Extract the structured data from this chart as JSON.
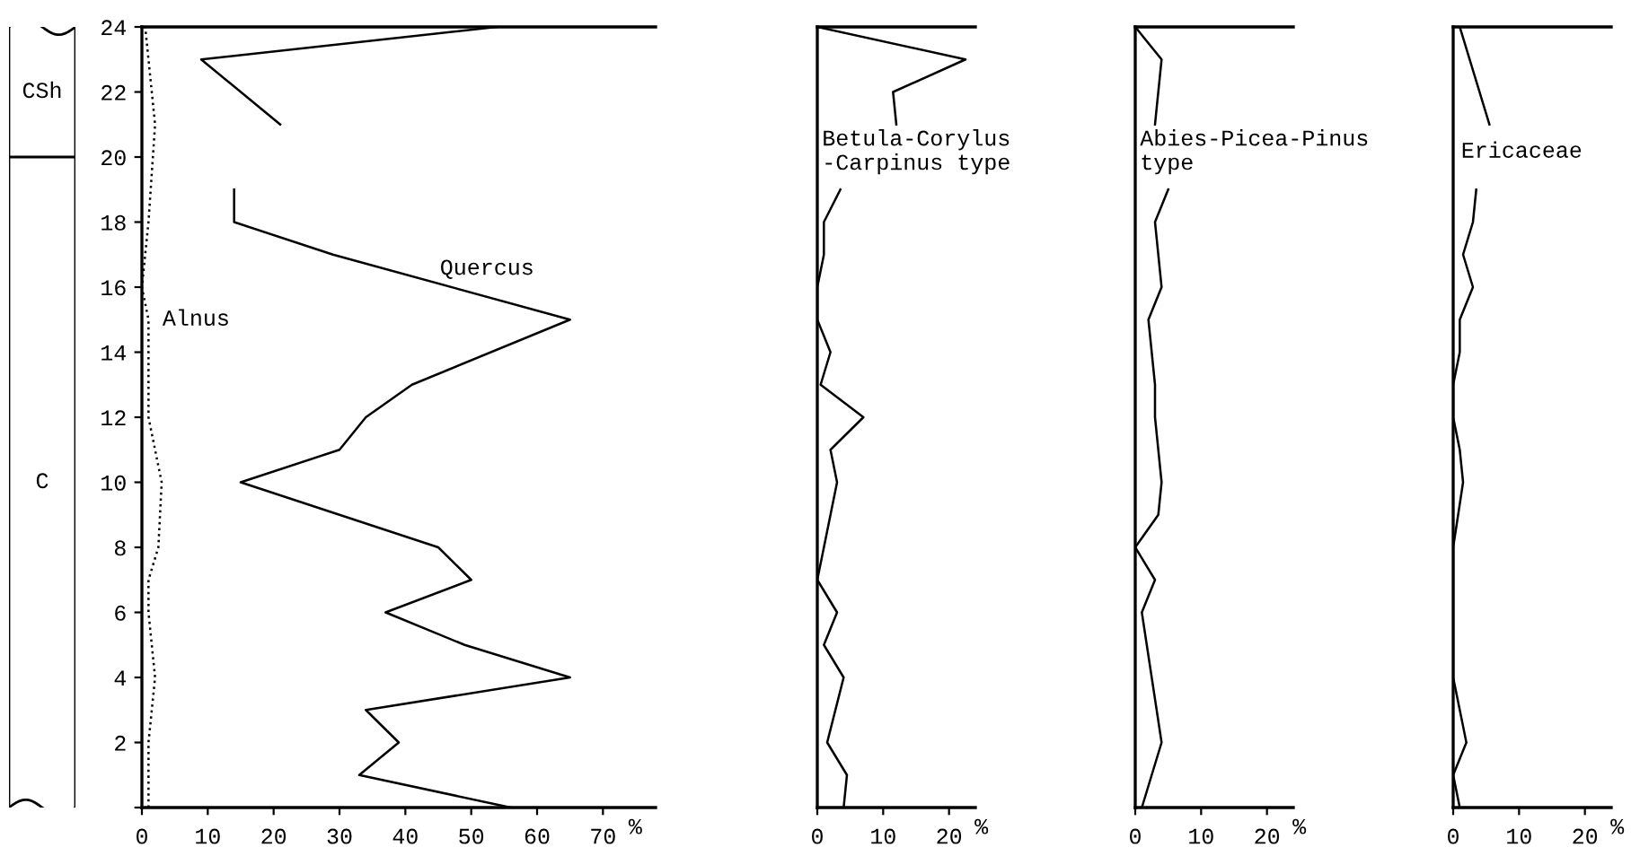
{
  "chart_data": [
    {
      "type": "other",
      "annotations": [
        "CSh",
        "C"
      ]
    },
    {
      "type": "line",
      "xlim": [
        0,
        78
      ],
      "ylim": [
        0,
        24
      ],
      "grid": false,
      "marker": "none",
      "xticks": [
        0,
        10,
        20,
        30,
        40,
        50,
        60,
        70
      ],
      "xlabel": "%",
      "yticks": [
        {
          "value": 0,
          "label": null
        },
        2,
        4,
        6,
        8,
        10,
        12,
        14,
        16,
        18,
        20,
        22,
        24
      ],
      "series": [
        {
          "color": "#000000",
          "line_style": "solid",
          "x": [
            56,
            33,
            39,
            34,
            65,
            49,
            37,
            50,
            45,
            15,
            30,
            34,
            41,
            65,
            29,
            14,
            14,
            null,
            21,
            9,
            54
          ],
          "values": [
            0,
            1,
            2,
            3,
            4,
            5,
            6,
            7,
            8,
            10,
            11,
            12,
            13,
            15,
            17,
            18,
            19,
            null,
            21,
            23,
            24
          ]
        },
        {
          "color": "#000000",
          "line_style": "dotted",
          "x": [
            1,
            1,
            2,
            1,
            1,
            2.5,
            3,
            1,
            1,
            0,
            1,
            2,
            1.5,
            0.5
          ],
          "values": [
            0,
            2,
            4,
            6,
            7,
            8,
            10,
            12,
            15,
            16,
            18,
            21,
            22,
            24
          ]
        }
      ],
      "annotations": [
        "Quercus",
        "Alnus"
      ]
    },
    {
      "type": "line",
      "xlim": [
        0,
        24
      ],
      "ylim": [
        0,
        24
      ],
      "grid": false,
      "marker": "none",
      "tick_labels": "x",
      "xticks": [
        0,
        10,
        20
      ],
      "xlabel": "%",
      "series": [
        {
          "color": "#000000",
          "line_style": "solid",
          "x": [
            4,
            4.5,
            1.5,
            4,
            1,
            3,
            0,
            3,
            2,
            7,
            0.5,
            2,
            0,
            0,
            1,
            1,
            3.5,
            null,
            12,
            11.5,
            22.5,
            0
          ],
          "values": [
            0,
            1,
            2,
            4,
            5,
            6,
            7,
            10,
            11,
            12,
            13,
            14,
            15,
            16,
            17,
            18,
            19,
            null,
            21,
            22,
            23,
            24
          ]
        }
      ],
      "annotations": [
        "Betula-Corylus\n-Carpinus type"
      ]
    },
    {
      "type": "line",
      "xlim": [
        0,
        24
      ],
      "ylim": [
        0,
        24
      ],
      "grid": false,
      "marker": "none",
      "tick_labels": "x",
      "xticks": [
        0,
        10,
        20
      ],
      "xlabel": "%",
      "series": [
        {
          "color": "#000000",
          "line_style": "solid",
          "x": [
            1,
            4,
            1,
            3,
            0,
            3.5,
            4,
            3,
            3,
            2,
            4,
            3,
            5,
            null,
            3,
            4,
            0
          ],
          "values": [
            0,
            2,
            6,
            7,
            8,
            9,
            10,
            12,
            13,
            15,
            16,
            18,
            19,
            null,
            21,
            23,
            24
          ]
        }
      ],
      "annotations": [
        "Abies-Picea-Pinus\ntype"
      ]
    },
    {
      "type": "line",
      "xlim": [
        0,
        24
      ],
      "ylim": [
        0,
        24
      ],
      "grid": false,
      "marker": "none",
      "tick_labels": "x",
      "xticks": [
        0,
        10,
        20
      ],
      "xlabel": "%",
      "series": [
        {
          "color": "#000000",
          "line_style": "solid",
          "x": [
            1,
            0,
            2,
            1,
            0,
            0,
            0,
            1.5,
            1,
            0,
            0,
            1,
            1,
            3,
            1.5,
            3,
            3.5,
            null,
            5.5,
            1
          ],
          "values": [
            0,
            1,
            2,
            3,
            4,
            5,
            8,
            10,
            11,
            12,
            13,
            14,
            15,
            16,
            17,
            18,
            19,
            null,
            21,
            24
          ]
        }
      ],
      "annotations": [
        "Ericaceae"
      ]
    }
  ]
}
